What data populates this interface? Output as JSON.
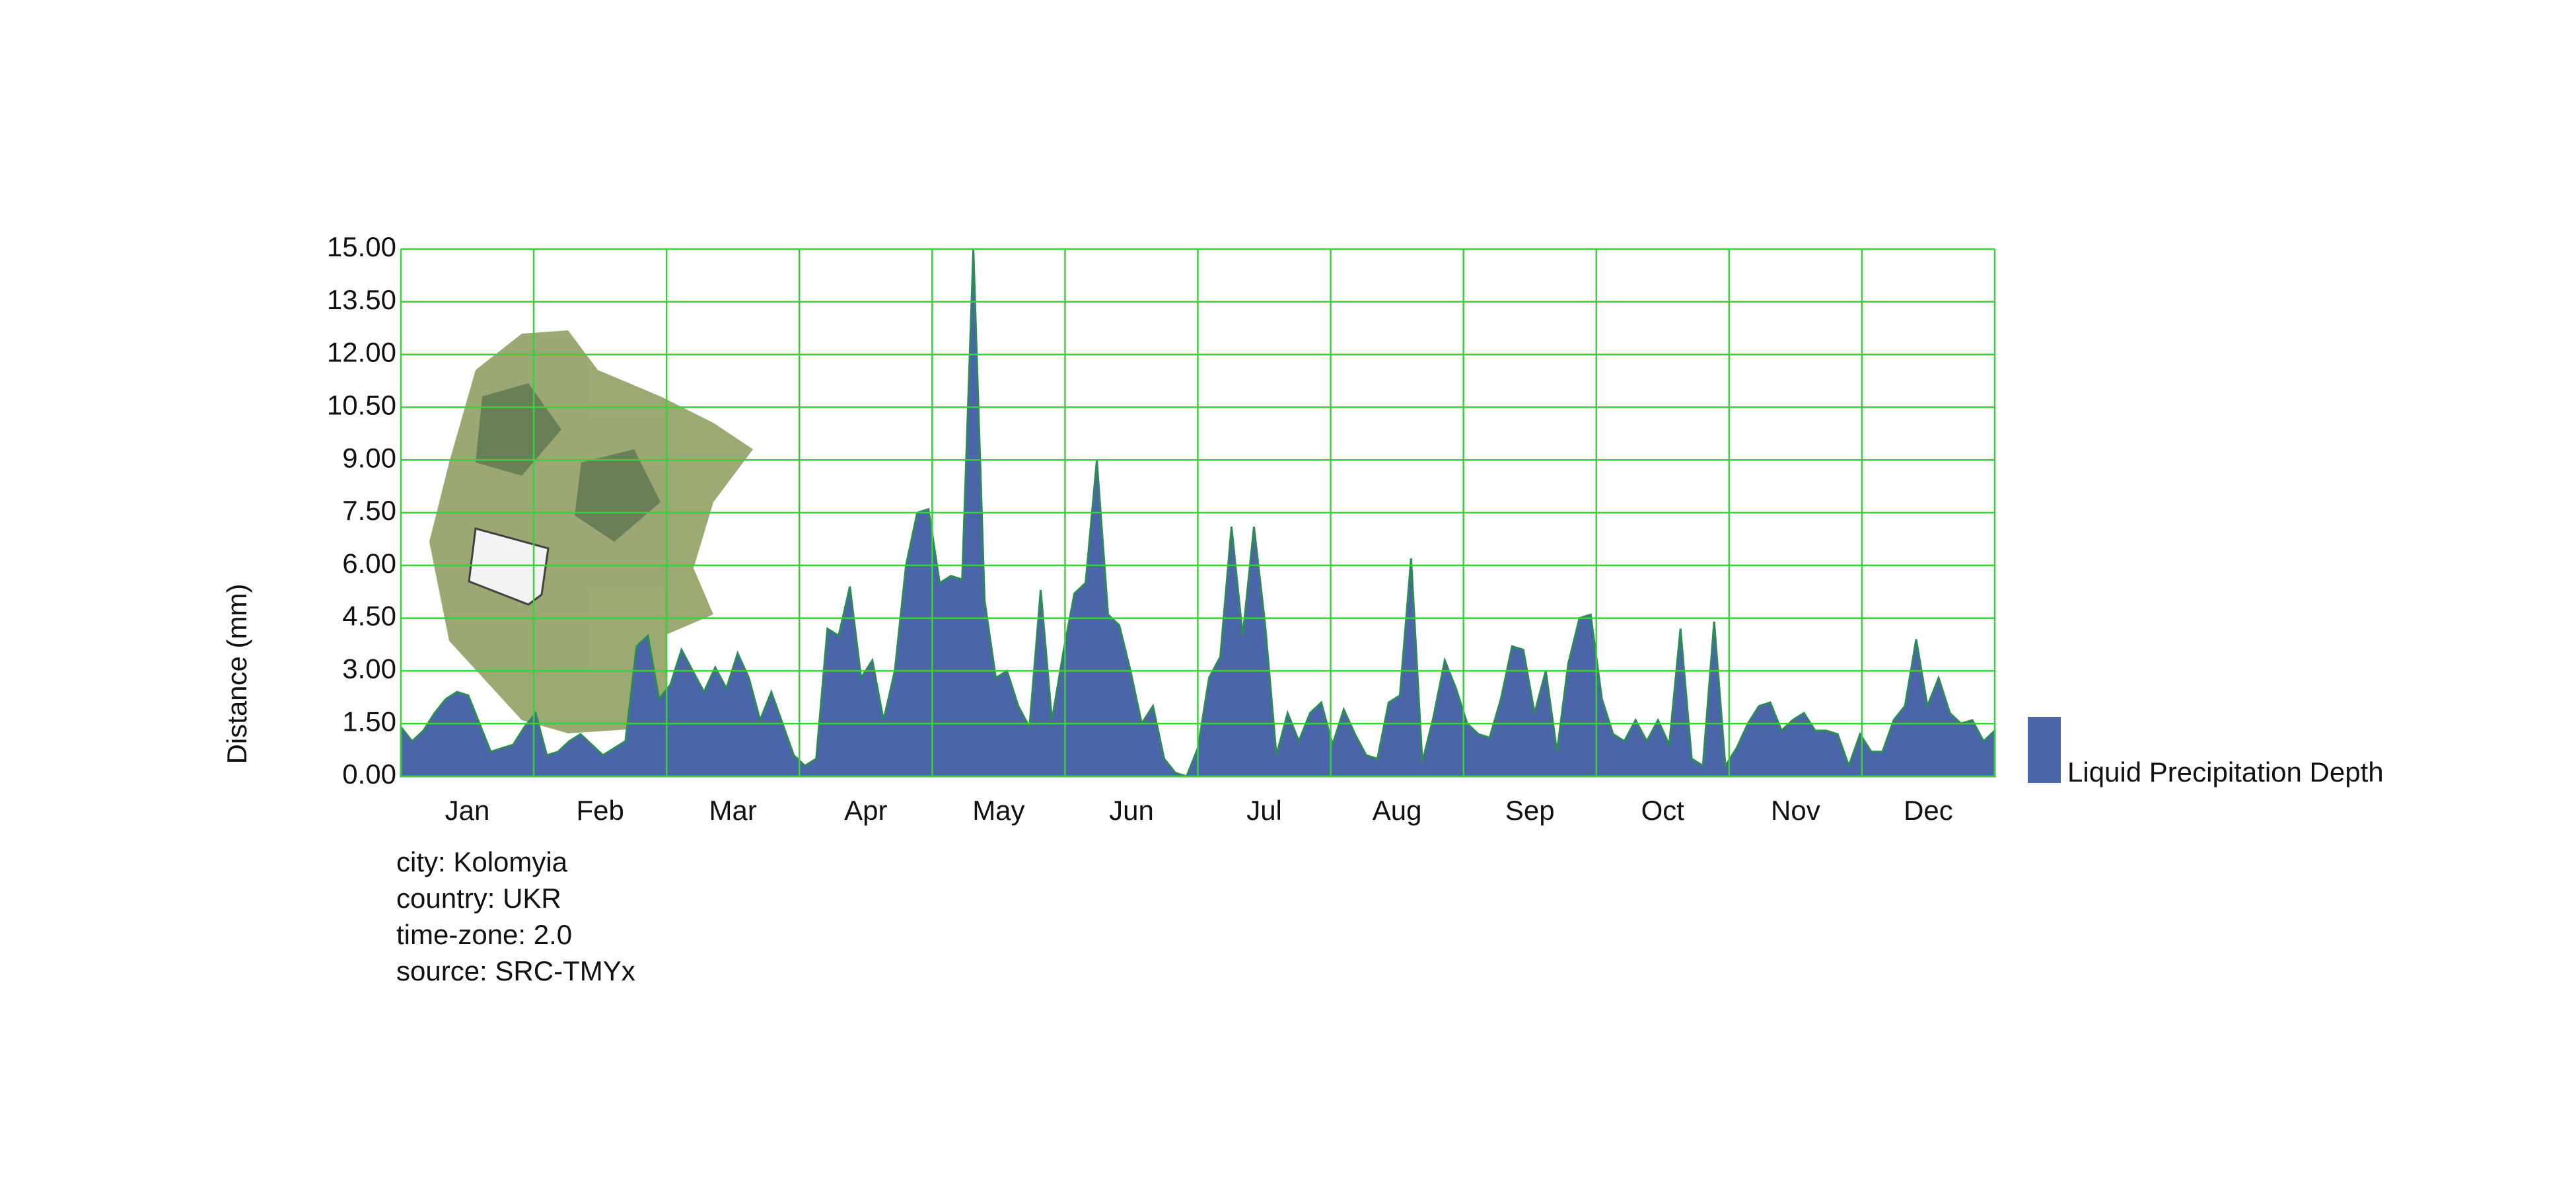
{
  "chart_data": {
    "type": "area",
    "y_label": "Distance (mm)",
    "months": [
      "Jan",
      "Feb",
      "Mar",
      "Apr",
      "May",
      "Jun",
      "Jul",
      "Aug",
      "Sep",
      "Oct",
      "Nov",
      "Dec"
    ],
    "series": [
      {
        "name": "Liquid Precipitation Depth",
        "color": "#4a66a8",
        "values": [
          1.4,
          1.0,
          1.3,
          1.8,
          2.2,
          2.4,
          2.3,
          1.5,
          0.7,
          0.8,
          0.9,
          1.4,
          1.8,
          0.6,
          0.7,
          1.0,
          1.2,
          0.9,
          0.6,
          0.8,
          1.0,
          3.7,
          4.0,
          2.2,
          2.6,
          3.6,
          3.0,
          2.4,
          3.1,
          2.5,
          3.5,
          2.8,
          1.6,
          2.4,
          1.5,
          0.6,
          0.3,
          0.5,
          4.2,
          4.0,
          5.4,
          2.8,
          3.3,
          1.6,
          3.0,
          6.0,
          7.5,
          7.6,
          5.5,
          5.7,
          5.6,
          15.0,
          5.0,
          2.8,
          3.0,
          2.0,
          1.4,
          5.3,
          1.6,
          3.5,
          5.2,
          5.5,
          9.0,
          4.6,
          4.3,
          3.0,
          1.5,
          2.0,
          0.5,
          0.1,
          0.0,
          0.8,
          2.8,
          3.4,
          7.1,
          4.0,
          7.1,
          4.3,
          0.6,
          1.8,
          1.0,
          1.8,
          2.1,
          0.9,
          1.9,
          1.2,
          0.6,
          0.5,
          2.1,
          2.3,
          6.2,
          0.4,
          1.7,
          3.3,
          2.5,
          1.5,
          1.2,
          1.1,
          2.2,
          3.7,
          3.6,
          1.8,
          3.0,
          0.7,
          3.2,
          4.5,
          4.6,
          2.2,
          1.2,
          1.0,
          1.6,
          1.0,
          1.6,
          0.9,
          4.2,
          0.5,
          0.3,
          4.4,
          0.3,
          0.8,
          1.5,
          2.0,
          2.1,
          1.3,
          1.6,
          1.8,
          1.3,
          1.3,
          1.2,
          0.3,
          1.2,
          0.7,
          0.7,
          1.6,
          2.0,
          3.9,
          2.0,
          2.8,
          1.8,
          1.5,
          1.6,
          1.0,
          1.3
        ]
      }
    ],
    "ylim": [
      0,
      15
    ],
    "yticks": [
      {
        "value": 0,
        "label": "0.00"
      },
      {
        "value": 1.5,
        "label": "1.50"
      },
      {
        "value": 3,
        "label": "3.00"
      },
      {
        "value": 4.5,
        "label": "4.50"
      },
      {
        "value": 6,
        "label": "6.00"
      },
      {
        "value": 7.5,
        "label": "7.50"
      },
      {
        "value": 9,
        "label": "9.00"
      },
      {
        "value": 10.5,
        "label": "10.50"
      },
      {
        "value": 12,
        "label": "12.00"
      },
      {
        "value": 13.5,
        "label": "13.50"
      },
      {
        "value": 15,
        "label": "15.00"
      }
    ],
    "grid": true,
    "grid_color": "#3ccf3c",
    "annotations": [
      "city: Kolomyia",
      "country: UKR",
      "time-zone: 2.0",
      "source: SRC-TMYx"
    ]
  }
}
